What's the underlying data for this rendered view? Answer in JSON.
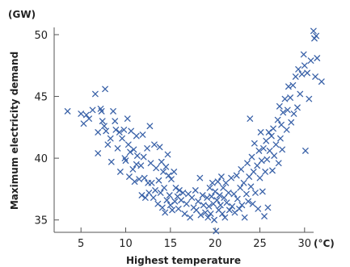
{
  "chart_data": {
    "type": "scatter",
    "ylabel": "Maximum electricity demand",
    "xlabel": "Highest temperature",
    "y_unit": "(GW)",
    "x_unit": "(°C)",
    "xlim": [
      2,
      33
    ],
    "ylim": [
      34,
      51.5
    ],
    "x_ticks": [
      5,
      10,
      15,
      20,
      25,
      30
    ],
    "y_ticks": [
      35,
      40,
      45,
      50
    ],
    "point_color": "#3a62a8",
    "points": [
      [
        3.5,
        43.8
      ],
      [
        5.0,
        43.6
      ],
      [
        5.3,
        42.8
      ],
      [
        5.6,
        43.5
      ],
      [
        5.9,
        43.2
      ],
      [
        6.3,
        43.9
      ],
      [
        6.6,
        45.2
      ],
      [
        6.9,
        42.1
      ],
      [
        6.9,
        40.4
      ],
      [
        7.2,
        44.0
      ],
      [
        7.3,
        43.8
      ],
      [
        7.4,
        43.0
      ],
      [
        7.6,
        42.6
      ],
      [
        7.7,
        45.6
      ],
      [
        7.8,
        42.2
      ],
      [
        8.0,
        41.1
      ],
      [
        8.3,
        41.6
      ],
      [
        8.4,
        39.7
      ],
      [
        8.6,
        43.8
      ],
      [
        8.8,
        43.0
      ],
      [
        8.9,
        42.3
      ],
      [
        9.1,
        40.8
      ],
      [
        9.3,
        42.1
      ],
      [
        9.4,
        38.9
      ],
      [
        9.6,
        41.6
      ],
      [
        9.8,
        42.3
      ],
      [
        9.9,
        40.0
      ],
      [
        10.0,
        39.8
      ],
      [
        10.2,
        43.2
      ],
      [
        10.3,
        41.1
      ],
      [
        10.4,
        38.5
      ],
      [
        10.5,
        40.5
      ],
      [
        10.6,
        42.2
      ],
      [
        10.8,
        39.1
      ],
      [
        10.9,
        40.7
      ],
      [
        11.0,
        38.1
      ],
      [
        11.2,
        41.8
      ],
      [
        11.2,
        39.5
      ],
      [
        11.3,
        40.2
      ],
      [
        11.5,
        38.3
      ],
      [
        11.7,
        39.4
      ],
      [
        11.8,
        37.0
      ],
      [
        11.9,
        41.9
      ],
      [
        12.0,
        40.1
      ],
      [
        12.1,
        38.4
      ],
      [
        12.2,
        36.8
      ],
      [
        12.4,
        40.8
      ],
      [
        12.5,
        38.0
      ],
      [
        12.6,
        37.2
      ],
      [
        12.7,
        42.6
      ],
      [
        12.8,
        39.6
      ],
      [
        12.9,
        38.0
      ],
      [
        13.1,
        36.8
      ],
      [
        13.2,
        41.1
      ],
      [
        13.3,
        37.4
      ],
      [
        13.4,
        39.2
      ],
      [
        13.6,
        36.3
      ],
      [
        13.7,
        38.2
      ],
      [
        13.8,
        40.9
      ],
      [
        13.9,
        37.2
      ],
      [
        14.0,
        39.7
      ],
      [
        14.1,
        36.0
      ],
      [
        14.2,
        38.9
      ],
      [
        14.3,
        37.6
      ],
      [
        14.4,
        35.6
      ],
      [
        14.5,
        39.3
      ],
      [
        14.6,
        36.6
      ],
      [
        14.7,
        40.3
      ],
      [
        14.8,
        38.6
      ],
      [
        14.9,
        37.0
      ],
      [
        15.0,
        36.2
      ],
      [
        15.1,
        38.3
      ],
      [
        15.2,
        35.8
      ],
      [
        15.4,
        38.9
      ],
      [
        15.5,
        36.5
      ],
      [
        15.6,
        37.6
      ],
      [
        15.8,
        36.9
      ],
      [
        15.9,
        35.9
      ],
      [
        16.0,
        37.4
      ],
      [
        16.2,
        36.6
      ],
      [
        16.4,
        37.2
      ],
      [
        16.6,
        35.5
      ],
      [
        16.8,
        36.3
      ],
      [
        17.0,
        37.1
      ],
      [
        17.2,
        35.2
      ],
      [
        17.4,
        36.8
      ],
      [
        17.6,
        36.0
      ],
      [
        17.8,
        37.4
      ],
      [
        17.9,
        35.8
      ],
      [
        18.1,
        36.5
      ],
      [
        18.3,
        38.4
      ],
      [
        18.4,
        35.4
      ],
      [
        18.6,
        37.0
      ],
      [
        18.7,
        36.2
      ],
      [
        18.9,
        35.6
      ],
      [
        19.1,
        36.8
      ],
      [
        19.2,
        35.2
      ],
      [
        19.3,
        36.1
      ],
      [
        19.4,
        37.6
      ],
      [
        19.5,
        35.5
      ],
      [
        19.6,
        36.9
      ],
      [
        19.7,
        38.0
      ],
      [
        19.8,
        36.3
      ],
      [
        19.9,
        35.0
      ],
      [
        20.0,
        37.3
      ],
      [
        20.1,
        34.1
      ],
      [
        20.2,
        36.6
      ],
      [
        20.3,
        38.1
      ],
      [
        20.4,
        35.8
      ],
      [
        20.5,
        37.0
      ],
      [
        20.6,
        36.2
      ],
      [
        20.7,
        38.5
      ],
      [
        20.8,
        35.5
      ],
      [
        20.9,
        37.6
      ],
      [
        21.0,
        36.8
      ],
      [
        21.1,
        35.2
      ],
      [
        21.2,
        38.0
      ],
      [
        21.3,
        36.4
      ],
      [
        21.5,
        37.2
      ],
      [
        21.6,
        35.8
      ],
      [
        21.8,
        38.4
      ],
      [
        21.9,
        36.1
      ],
      [
        22.1,
        37.1
      ],
      [
        22.2,
        35.6
      ],
      [
        22.4,
        38.6
      ],
      [
        22.5,
        36.7
      ],
      [
        22.7,
        35.9
      ],
      [
        22.8,
        37.6
      ],
      [
        22.9,
        39.1
      ],
      [
        23.0,
        36.2
      ],
      [
        23.2,
        38.0
      ],
      [
        23.3,
        35.2
      ],
      [
        23.5,
        37.1
      ],
      [
        23.6,
        39.6
      ],
      [
        23.7,
        36.5
      ],
      [
        23.8,
        38.5
      ],
      [
        23.9,
        43.2
      ],
      [
        24.0,
        37.7
      ],
      [
        24.1,
        40.1
      ],
      [
        24.2,
        36.3
      ],
      [
        24.3,
        38.9
      ],
      [
        24.4,
        41.2
      ],
      [
        24.5,
        37.2
      ],
      [
        24.7,
        39.4
      ],
      [
        24.8,
        35.9
      ],
      [
        24.9,
        40.6
      ],
      [
        25.0,
        38.4
      ],
      [
        25.1,
        42.1
      ],
      [
        25.2,
        39.8
      ],
      [
        25.3,
        37.3
      ],
      [
        25.4,
        40.8
      ],
      [
        25.5,
        35.3
      ],
      [
        25.6,
        38.9
      ],
      [
        25.7,
        41.4
      ],
      [
        25.8,
        39.9
      ],
      [
        25.9,
        36.0
      ],
      [
        26.0,
        42.1
      ],
      [
        26.1,
        40.6
      ],
      [
        26.3,
        41.8
      ],
      [
        26.4,
        39.0
      ],
      [
        26.5,
        42.4
      ],
      [
        26.6,
        40.2
      ],
      [
        26.8,
        41.1
      ],
      [
        27.0,
        43.1
      ],
      [
        27.1,
        39.6
      ],
      [
        27.2,
        44.2
      ],
      [
        27.3,
        41.6
      ],
      [
        27.4,
        42.7
      ],
      [
        27.5,
        40.7
      ],
      [
        27.6,
        43.7
      ],
      [
        27.8,
        44.8
      ],
      [
        28.0,
        42.3
      ],
      [
        28.1,
        43.9
      ],
      [
        28.2,
        45.8
      ],
      [
        28.4,
        44.9
      ],
      [
        28.5,
        42.9
      ],
      [
        28.7,
        45.9
      ],
      [
        28.8,
        43.6
      ],
      [
        29.0,
        46.6
      ],
      [
        29.2,
        44.1
      ],
      [
        29.3,
        47.2
      ],
      [
        29.5,
        45.2
      ],
      [
        29.7,
        46.8
      ],
      [
        29.9,
        48.4
      ],
      [
        30.0,
        47.5
      ],
      [
        30.1,
        40.6
      ],
      [
        30.3,
        46.9
      ],
      [
        30.5,
        44.8
      ],
      [
        30.7,
        47.9
      ],
      [
        31.0,
        50.3
      ],
      [
        31.1,
        49.7
      ],
      [
        31.2,
        46.6
      ],
      [
        31.3,
        49.9
      ],
      [
        31.4,
        48.1
      ],
      [
        31.9,
        46.2
      ]
    ]
  }
}
